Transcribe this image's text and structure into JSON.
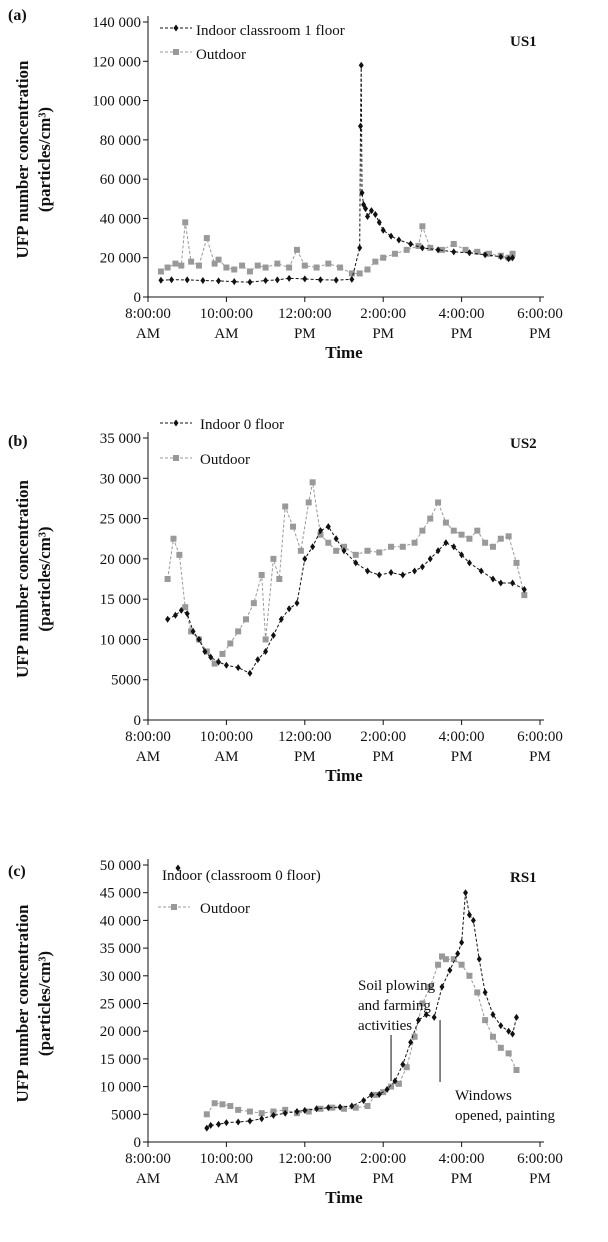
{
  "chart_data": [
    {
      "type": "line",
      "panel_label": "(a)",
      "site": "US1",
      "xlabel": "Time",
      "ylabel_line1": "UFP number concentration",
      "ylabel_line2": "(particles/cm³)",
      "x_ticks": [
        {
          "l1": "8:00:00",
          "l2": "AM",
          "h": 8
        },
        {
          "l1": "10:00:00",
          "l2": "AM",
          "h": 10
        },
        {
          "l1": "12:00:00",
          "l2": "PM",
          "h": 12
        },
        {
          "l1": "2:00:00",
          "l2": "PM",
          "h": 14
        },
        {
          "l1": "4:00:00",
          "l2": "PM",
          "h": 16
        },
        {
          "l1": "6:00:00",
          "l2": "PM",
          "h": 18
        }
      ],
      "y_ticks": [
        {
          "v": 0,
          "l": "0"
        },
        {
          "v": 20000,
          "l": "20 000"
        },
        {
          "v": 40000,
          "l": "40 000"
        },
        {
          "v": 60000,
          "l": "60 000"
        },
        {
          "v": 80000,
          "l": "80 000"
        },
        {
          "v": 100000,
          "l": "100 000"
        },
        {
          "v": 120000,
          "l": "120 000"
        },
        {
          "v": 140000,
          "l": "140 000"
        }
      ],
      "xlim": [
        8,
        18
      ],
      "ylim": [
        0,
        140000
      ],
      "series": [
        {
          "name": "Indoor classroom 1 floor",
          "color": "#111111",
          "marker": "diamond",
          "x": [
            8.33,
            8.6,
            9.0,
            9.4,
            9.8,
            10.2,
            10.6,
            11.0,
            11.3,
            11.6,
            12.0,
            12.4,
            12.8,
            13.2,
            13.4,
            13.42,
            13.44,
            13.46,
            13.5,
            13.55,
            13.6,
            13.7,
            13.8,
            13.9,
            14.0,
            14.2,
            14.4,
            14.7,
            15.0,
            15.4,
            15.8,
            16.2,
            16.6,
            17.0,
            17.2,
            17.3
          ],
          "y": [
            8500,
            8800,
            8700,
            8400,
            8200,
            7800,
            7600,
            8400,
            8700,
            9500,
            9200,
            8800,
            8600,
            9000,
            25000,
            87000,
            118000,
            53000,
            47000,
            45000,
            41000,
            44000,
            42000,
            38000,
            34000,
            31000,
            29000,
            27000,
            25000,
            24000,
            23000,
            22500,
            21500,
            20500,
            19500,
            20000
          ]
        },
        {
          "name": "Outdoor",
          "color": "#999999",
          "marker": "square",
          "x": [
            8.33,
            8.5,
            8.7,
            8.85,
            8.95,
            9.1,
            9.3,
            9.5,
            9.7,
            9.8,
            10.0,
            10.2,
            10.4,
            10.6,
            10.8,
            11.0,
            11.3,
            11.6,
            11.8,
            12.0,
            12.3,
            12.6,
            12.9,
            13.2,
            13.4,
            13.6,
            13.8,
            14.0,
            14.3,
            14.6,
            14.9,
            15.0,
            15.2,
            15.5,
            15.8,
            16.1,
            16.4,
            16.7,
            17.0,
            17.2,
            17.3
          ],
          "y": [
            13000,
            15000,
            17000,
            16000,
            38000,
            18000,
            16000,
            30000,
            17000,
            19000,
            15000,
            14000,
            16000,
            13000,
            16000,
            15000,
            17000,
            15000,
            24000,
            16000,
            15000,
            17000,
            15000,
            12000,
            12000,
            14000,
            18000,
            20000,
            22000,
            24000,
            26000,
            36000,
            25000,
            24000,
            27000,
            24000,
            23000,
            22000,
            21000,
            20000,
            22000
          ]
        }
      ]
    },
    {
      "type": "line",
      "panel_label": "(b)",
      "site": "US2",
      "xlabel": "Time",
      "ylabel_line1": "UFP number concentration",
      "ylabel_line2": "(particles/cm³)",
      "x_ticks": [
        {
          "l1": "8:00:00",
          "l2": "AM",
          "h": 8
        },
        {
          "l1": "10:00:00",
          "l2": "AM",
          "h": 10
        },
        {
          "l1": "12:00:00",
          "l2": "PM",
          "h": 12
        },
        {
          "l1": "2:00:00",
          "l2": "PM",
          "h": 14
        },
        {
          "l1": "4:00:00",
          "l2": "PM",
          "h": 16
        },
        {
          "l1": "6:00:00",
          "l2": "PM",
          "h": 18
        }
      ],
      "y_ticks": [
        {
          "v": 0,
          "l": "0"
        },
        {
          "v": 5000,
          "l": "5000"
        },
        {
          "v": 10000,
          "l": "10 000"
        },
        {
          "v": 15000,
          "l": "15 000"
        },
        {
          "v": 20000,
          "l": "20 000"
        },
        {
          "v": 25000,
          "l": "25 000"
        },
        {
          "v": 30000,
          "l": "30 000"
        },
        {
          "v": 35000,
          "l": "35 000"
        }
      ],
      "xlim": [
        8,
        18
      ],
      "ylim": [
        0,
        35000
      ],
      "series": [
        {
          "name": "Indoor 0 floor",
          "color": "#111111",
          "marker": "diamond",
          "x": [
            8.5,
            8.7,
            8.85,
            9.0,
            9.15,
            9.3,
            9.45,
            9.6,
            9.8,
            10.0,
            10.3,
            10.6,
            10.8,
            11.0,
            11.2,
            11.4,
            11.6,
            11.8,
            12.0,
            12.2,
            12.4,
            12.6,
            12.8,
            13.0,
            13.3,
            13.6,
            13.9,
            14.2,
            14.5,
            14.8,
            15.0,
            15.2,
            15.4,
            15.6,
            15.8,
            16.0,
            16.2,
            16.5,
            16.8,
            17.0,
            17.3,
            17.6
          ],
          "y": [
            12500,
            13000,
            13600,
            13200,
            11000,
            10000,
            8500,
            7800,
            7200,
            6800,
            6500,
            5800,
            7500,
            8500,
            10500,
            12500,
            13800,
            14500,
            20000,
            21500,
            23500,
            24000,
            22500,
            21000,
            19500,
            18500,
            18000,
            18300,
            18000,
            18500,
            19000,
            20000,
            21000,
            22000,
            21500,
            20500,
            19500,
            18500,
            17500,
            17000,
            17000,
            16200
          ]
        },
        {
          "name": "Outdoor",
          "color": "#999999",
          "marker": "square",
          "x": [
            8.5,
            8.65,
            8.8,
            8.95,
            9.1,
            9.3,
            9.5,
            9.7,
            9.9,
            10.1,
            10.3,
            10.5,
            10.7,
            10.9,
            11.0,
            11.2,
            11.35,
            11.5,
            11.7,
            11.9,
            12.1,
            12.2,
            12.4,
            12.6,
            12.8,
            13.0,
            13.3,
            13.6,
            13.9,
            14.2,
            14.5,
            14.8,
            15.0,
            15.2,
            15.4,
            15.6,
            15.8,
            16.0,
            16.2,
            16.4,
            16.6,
            16.8,
            17.0,
            17.2,
            17.4,
            17.6
          ],
          "y": [
            17500,
            22500,
            20500,
            14000,
            11000,
            10000,
            8500,
            7000,
            8200,
            9500,
            11000,
            12500,
            14500,
            18000,
            10000,
            20000,
            17500,
            26500,
            24000,
            21000,
            27000,
            29500,
            23000,
            22000,
            21000,
            21500,
            20500,
            21000,
            20800,
            21500,
            21500,
            22000,
            23500,
            25000,
            27000,
            24500,
            23500,
            23000,
            22500,
            23500,
            22000,
            21500,
            22500,
            22800,
            19500,
            15500
          ]
        }
      ]
    },
    {
      "type": "line",
      "panel_label": "(c)",
      "site": "RS1",
      "xlabel": "Time",
      "ylabel_line1": "UFP number concentration",
      "ylabel_line2": "(particles/cm³)",
      "x_ticks": [
        {
          "l1": "8:00:00",
          "l2": "AM",
          "h": 8
        },
        {
          "l1": "10:00:00",
          "l2": "AM",
          "h": 10
        },
        {
          "l1": "12:00:00",
          "l2": "PM",
          "h": 12
        },
        {
          "l1": "2:00:00",
          "l2": "PM",
          "h": 14
        },
        {
          "l1": "4:00:00",
          "l2": "PM",
          "h": 16
        },
        {
          "l1": "6:00:00",
          "l2": "PM",
          "h": 18
        }
      ],
      "y_ticks": [
        {
          "v": 0,
          "l": "0"
        },
        {
          "v": 5000,
          "l": "5000"
        },
        {
          "v": 10000,
          "l": "10 000"
        },
        {
          "v": 15000,
          "l": "15 000"
        },
        {
          "v": 20000,
          "l": "20 000"
        },
        {
          "v": 25000,
          "l": "25 000"
        },
        {
          "v": 30000,
          "l": "30 000"
        },
        {
          "v": 35000,
          "l": "35 000"
        },
        {
          "v": 40000,
          "l": "40 000"
        },
        {
          "v": 45000,
          "l": "45 000"
        },
        {
          "v": 50000,
          "l": "50 000"
        }
      ],
      "xlim": [
        8,
        18
      ],
      "ylim": [
        0,
        50000
      ],
      "annotations": [
        {
          "lines": [
            "Soil plowing",
            "and  farming",
            "activities"
          ],
          "x": 14.2,
          "y": 11000
        },
        {
          "lines": [
            "Windows",
            "opened, painting"
          ],
          "x": 15.45,
          "y": 22000
        }
      ],
      "series": [
        {
          "name": "Indoor (classroom 0 floor)",
          "color": "#111111",
          "marker": "diamond",
          "x": [
            9.5,
            9.6,
            9.8,
            10.0,
            10.3,
            10.6,
            10.9,
            11.2,
            11.5,
            11.8,
            12.0,
            12.3,
            12.6,
            12.9,
            13.2,
            13.5,
            13.7,
            13.9,
            14.1,
            14.3,
            14.5,
            14.7,
            14.9,
            15.1,
            15.3,
            15.5,
            15.7,
            15.9,
            16.0,
            16.1,
            16.2,
            16.3,
            16.45,
            16.6,
            16.8,
            17.0,
            17.2,
            17.3,
            17.4
          ],
          "y": [
            2500,
            3000,
            3200,
            3500,
            3600,
            3800,
            4200,
            4800,
            5200,
            5500,
            5700,
            6000,
            6200,
            6300,
            6500,
            7500,
            8500,
            8600,
            9500,
            11000,
            14000,
            18000,
            22000,
            23000,
            22500,
            28000,
            31000,
            34000,
            36000,
            45000,
            41000,
            40000,
            33000,
            27000,
            23000,
            21000,
            20000,
            19500,
            22500
          ]
        },
        {
          "name": "Outdoor",
          "color": "#999999",
          "marker": "square",
          "x": [
            9.5,
            9.7,
            9.9,
            10.1,
            10.3,
            10.6,
            10.9,
            11.2,
            11.5,
            11.8,
            12.1,
            12.4,
            12.7,
            13.0,
            13.3,
            13.6,
            13.8,
            14.0,
            14.2,
            14.4,
            14.6,
            14.8,
            15.0,
            15.2,
            15.4,
            15.5,
            15.6,
            15.8,
            16.0,
            16.2,
            16.4,
            16.6,
            16.8,
            17.0,
            17.2,
            17.4
          ],
          "y": [
            5000,
            7000,
            6800,
            6500,
            5800,
            5500,
            5200,
            5500,
            5800,
            5200,
            5500,
            6000,
            6200,
            6000,
            6200,
            6500,
            8500,
            9000,
            10000,
            10500,
            13500,
            19000,
            25000,
            28000,
            32000,
            33500,
            33000,
            33000,
            32000,
            30000,
            27000,
            22000,
            19000,
            17000,
            16000,
            13000
          ]
        }
      ]
    }
  ]
}
